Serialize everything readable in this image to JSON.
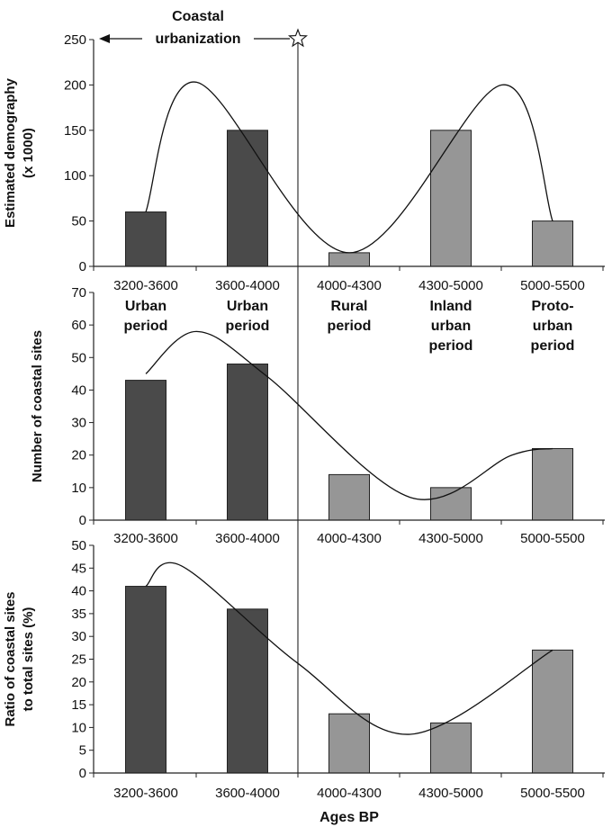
{
  "chart_data": [
    {
      "type": "bar",
      "categories": [
        "3200-3600",
        "3600-4000",
        "4000-4300",
        "4300-5000",
        "5000-5500"
      ],
      "values": [
        60,
        150,
        15,
        150,
        50
      ],
      "bar_colors": [
        "#4a4a4a",
        "#4a4a4a",
        "#969696",
        "#969696",
        "#969696"
      ],
      "ylabel": [
        "Estimated demography",
        "(x 1000)"
      ],
      "ylim": [
        0,
        250
      ],
      "yticks": [
        0,
        50,
        100,
        150,
        200,
        250
      ],
      "period_labels": [
        [
          "Urban",
          "period"
        ],
        [
          "Urban",
          "period"
        ],
        [
          "Rural",
          "period"
        ],
        [
          "Inland",
          "urban",
          "period"
        ],
        [
          "Proto-",
          "urban",
          "period"
        ]
      ],
      "trend_curve": {
        "x": [
          0,
          0.5,
          2.0,
          3.5,
          4.0
        ],
        "y": [
          60,
          203,
          15,
          200,
          50
        ]
      }
    },
    {
      "type": "bar",
      "categories": [
        "3200-3600",
        "3600-4000",
        "4000-4300",
        "4300-5000",
        "5000-5500"
      ],
      "values": [
        43,
        48,
        14,
        10,
        22
      ],
      "bar_colors": [
        "#4a4a4a",
        "#4a4a4a",
        "#969696",
        "#969696",
        "#969696"
      ],
      "ylabel": [
        "Number of coastal sites"
      ],
      "ylim": [
        0,
        70
      ],
      "yticks": [
        0,
        10,
        20,
        30,
        40,
        50,
        60,
        70
      ],
      "trend_curve": {
        "x": [
          0,
          0.5,
          1.2,
          2.6,
          3.6,
          4.0
        ],
        "y": [
          45,
          58,
          44,
          7,
          20,
          22
        ]
      }
    },
    {
      "type": "bar",
      "categories": [
        "3200-3600",
        "3600-4000",
        "4000-4300",
        "4300-5000",
        "5000-5500"
      ],
      "values": [
        41,
        36,
        13,
        11,
        27
      ],
      "bar_colors": [
        "#4a4a4a",
        "#4a4a4a",
        "#969696",
        "#969696",
        "#969696"
      ],
      "ylabel": [
        "Ratio of coastal sites",
        "to total sites (%)"
      ],
      "ylim": [
        0,
        50
      ],
      "yticks": [
        0,
        5,
        10,
        15,
        20,
        25,
        30,
        35,
        40,
        45,
        50
      ],
      "xlabel": "Ages BP",
      "trend_curve": {
        "x": [
          0,
          0.35,
          1.5,
          2.6,
          4.0
        ],
        "y": [
          41,
          45.5,
          24,
          8.5,
          27
        ]
      }
    }
  ],
  "annotation": {
    "lines": [
      "Coastal",
      "urbanization"
    ],
    "arrow_from_category": 1.5,
    "arrow_to": "y-axis"
  }
}
